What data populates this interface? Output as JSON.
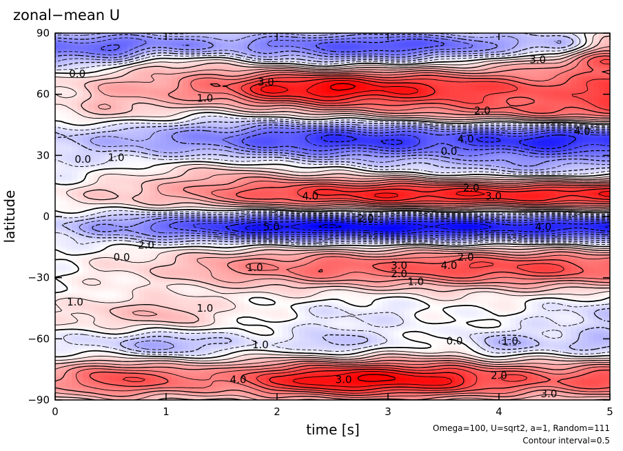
{
  "chart_data": {
    "type": "heatmap",
    "title": "zonal−mean U",
    "xlabel": "time [s]",
    "ylabel": "latitude",
    "xlim": [
      0,
      5
    ],
    "ylim": [
      -90,
      90
    ],
    "x_ticks": [
      0,
      1,
      2,
      3,
      4,
      5
    ],
    "x_tick_labels": [
      "0",
      "1",
      "2",
      "3",
      "4",
      "5"
    ],
    "y_ticks": [
      90,
      60,
      30,
      0,
      -30,
      -60,
      -90
    ],
    "y_tick_labels": [
      "90",
      "60",
      "30",
      "0",
      "−30",
      "−60",
      "−90"
    ],
    "colormap": {
      "positive": "#ff0000",
      "negative": "#0000ff",
      "zero": "#ffffff"
    },
    "contour_interval": 0.5,
    "bands": [
      {
        "lat": 84,
        "width": 5,
        "values": [
          -2.5,
          -3.0,
          -2.5,
          -2.0,
          -2.5,
          -3.0,
          -3.5,
          -3.0,
          -2.0,
          -1.5,
          1.0
        ]
      },
      {
        "lat": 76,
        "width": 4,
        "values": [
          -1.0,
          -0.5,
          1.0,
          0.5,
          -0.5,
          -1.0,
          -0.5,
          0.0,
          0.5,
          1.5,
          2.5
        ]
      },
      {
        "lat": 63,
        "width": 7,
        "values": [
          0.5,
          1.5,
          2.0,
          3.0,
          4.5,
          5.0,
          4.5,
          4.0,
          3.5,
          3.0,
          4.0
        ]
      },
      {
        "lat": 50,
        "width": 5,
        "values": [
          0.5,
          1.0,
          0.5,
          0.0,
          0.5,
          1.0,
          1.5,
          2.0,
          2.5,
          3.0,
          3.0
        ]
      },
      {
        "lat": 38,
        "width": 7,
        "values": [
          -1.0,
          -1.5,
          -2.0,
          -2.5,
          -3.5,
          -4.0,
          -4.0,
          -3.5,
          -4.0,
          -4.5,
          -4.0
        ]
      },
      {
        "lat": 22,
        "width": 5,
        "values": [
          -0.5,
          0.0,
          0.5,
          1.0,
          0.5,
          0.0,
          -0.5,
          -1.0,
          -1.5,
          -1.5,
          -1.0
        ]
      },
      {
        "lat": 11,
        "width": 6,
        "values": [
          0.5,
          1.0,
          1.5,
          2.5,
          3.5,
          4.0,
          4.5,
          4.5,
          4.5,
          4.5,
          4.5
        ]
      },
      {
        "lat": -5,
        "width": 5,
        "values": [
          -1.0,
          -2.0,
          -3.0,
          -4.0,
          -5.0,
          -5.0,
          -5.0,
          -5.0,
          -4.5,
          -4.5,
          -4.5
        ]
      },
      {
        "lat": -25,
        "width": 7,
        "values": [
          0.0,
          0.5,
          1.0,
          2.0,
          2.5,
          3.0,
          3.0,
          3.5,
          3.5,
          3.5,
          3.0
        ]
      },
      {
        "lat": -48,
        "width": 6,
        "values": [
          0.5,
          1.0,
          1.5,
          0.5,
          0.0,
          -0.5,
          -0.5,
          0.0,
          0.0,
          -0.5,
          -1.0
        ]
      },
      {
        "lat": -63,
        "width": 5,
        "values": [
          -0.5,
          -1.0,
          -2.0,
          -1.0,
          -0.5,
          -1.5,
          -0.5,
          0.0,
          -1.5,
          -1.0,
          -1.5
        ]
      },
      {
        "lat": -80,
        "width": 7,
        "values": [
          2.0,
          3.5,
          3.0,
          2.5,
          4.0,
          5.0,
          5.0,
          4.5,
          3.5,
          3.0,
          3.5
        ]
      }
    ],
    "contour_labels": [
      {
        "text": "1.0",
        "x": 3.25,
        "y": -32
      },
      {
        "text": "2.0",
        "x": 3.1,
        "y": -28
      },
      {
        "text": "3.0",
        "x": 3.1,
        "y": -24
      },
      {
        "text": "0.0",
        "x": 3.55,
        "y": 32
      },
      {
        "text": "4.0",
        "x": 2.3,
        "y": 10
      },
      {
        "text": "5.0",
        "x": 1.95,
        "y": -5
      },
      {
        "text": "1.0",
        "x": 1.35,
        "y": 58
      },
      {
        "text": "3.0",
        "x": 1.9,
        "y": 66
      },
      {
        "text": "2.0",
        "x": 3.85,
        "y": 52
      },
      {
        "text": "4.0",
        "x": 3.7,
        "y": 38
      },
      {
        "text": "3.0",
        "x": 3.95,
        "y": 10
      },
      {
        "text": "2.0",
        "x": 3.75,
        "y": 14
      },
      {
        "text": "4.0",
        "x": 3.55,
        "y": -24
      },
      {
        "text": "2.0",
        "x": 3.7,
        "y": -20
      },
      {
        "text": "0.0",
        "x": 0.2,
        "y": 70
      },
      {
        "text": "0.0",
        "x": 0.25,
        "y": 28
      },
      {
        "text": "1.0",
        "x": 0.55,
        "y": 29
      },
      {
        "text": "1.0",
        "x": 0.18,
        "y": -42
      },
      {
        "text": "1.0",
        "x": 1.8,
        "y": -25
      },
      {
        "text": "0.0",
        "x": 0.6,
        "y": -20
      },
      {
        "text": "2.0",
        "x": 0.82,
        "y": -14
      },
      {
        "text": "4.0",
        "x": 1.65,
        "y": -80
      },
      {
        "text": "3.0",
        "x": 2.6,
        "y": -80
      },
      {
        "text": "1.0",
        "x": 1.35,
        "y": -45
      },
      {
        "text": "1.0",
        "x": 1.85,
        "y": -63
      },
      {
        "text": "0.0",
        "x": 3.6,
        "y": -61
      },
      {
        "text": "1.0",
        "x": 4.1,
        "y": -61
      },
      {
        "text": "2.0",
        "x": 4.0,
        "y": -78
      },
      {
        "text": "3.0",
        "x": 4.45,
        "y": -87
      },
      {
        "text": "2.0",
        "x": 2.8,
        "y": -1
      },
      {
        "text": "4.0",
        "x": 4.4,
        "y": -5
      },
      {
        "text": "3.0",
        "x": 4.35,
        "y": 77
      },
      {
        "text": "4.0",
        "x": 4.75,
        "y": 42
      }
    ]
  },
  "footnote": {
    "line1": "Omega=100, U=sqrt2, a=1, Random=111",
    "line2": "Contour interval=0.5"
  }
}
